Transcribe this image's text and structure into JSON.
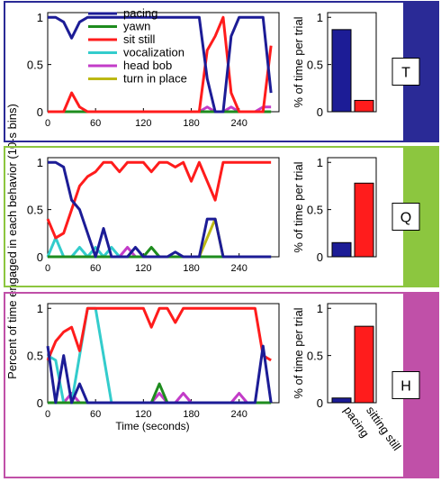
{
  "shared": {
    "ylabel": "Percent of time engaged in each behavior (10-s bins)",
    "xlabel": "Time (seconds)",
    "bar_ylabel": "% of time per trial",
    "bar_categories": [
      "pacing",
      "sitting still"
    ]
  },
  "legend": [
    {
      "name": "pacing",
      "color": "#1c1c96"
    },
    {
      "name": "yawn",
      "color": "#1e8c1e"
    },
    {
      "name": "sit still",
      "color": "#ff1c1c"
    },
    {
      "name": "vocalization",
      "color": "#33cccc"
    },
    {
      "name": "head bob",
      "color": "#c33cc8"
    },
    {
      "name": "turn in place",
      "color": "#bcb814"
    }
  ],
  "chart_data": [
    {
      "type": "line",
      "panel_letter": "T",
      "panel_color": "#2a2a96",
      "xticks": [
        0,
        60,
        120,
        180,
        240
      ],
      "yticks": [
        0,
        0.5,
        1
      ],
      "xlim": [
        0,
        290
      ],
      "ylim": [
        0,
        1.05
      ],
      "x": [
        0,
        10,
        20,
        30,
        40,
        50,
        60,
        70,
        80,
        90,
        100,
        110,
        120,
        130,
        140,
        150,
        160,
        170,
        180,
        190,
        200,
        210,
        220,
        230,
        240,
        250,
        260,
        270,
        280
      ],
      "series": [
        {
          "name": "pacing",
          "values": [
            1,
            1,
            0.95,
            0.78,
            0.95,
            1,
            1,
            1,
            1,
            1,
            1,
            1,
            1,
            1,
            1,
            1,
            1,
            1,
            1,
            1,
            0.35,
            0,
            0,
            0.8,
            1,
            1,
            1,
            1,
            0.2
          ]
        },
        {
          "name": "yawn",
          "values": [
            0,
            0,
            0,
            0,
            0,
            0,
            0,
            0,
            0,
            0,
            0,
            0,
            0,
            0,
            0,
            0,
            0,
            0,
            0,
            0,
            0,
            0,
            0,
            0,
            0,
            0,
            0,
            0,
            0
          ]
        },
        {
          "name": "sit still",
          "values": [
            0,
            0,
            0,
            0.2,
            0.05,
            0,
            0,
            0,
            0,
            0,
            0,
            0,
            0,
            0,
            0,
            0,
            0,
            0,
            0,
            0,
            0.65,
            0.8,
            1,
            0.2,
            0,
            0,
            0,
            0,
            0.7
          ]
        },
        {
          "name": "vocalization",
          "values": [
            0,
            0,
            0,
            0,
            0,
            0,
            0,
            0,
            0,
            0,
            0,
            0,
            0,
            0,
            0,
            0,
            0,
            0,
            0,
            0,
            0,
            0,
            0,
            0,
            0,
            0,
            0,
            0,
            0
          ]
        },
        {
          "name": "head bob",
          "values": [
            0,
            0,
            0,
            0,
            0,
            0,
            0,
            0,
            0,
            0,
            0,
            0,
            0,
            0,
            0,
            0,
            0,
            0,
            0,
            0,
            0.05,
            0,
            0,
            0.05,
            0,
            0,
            0,
            0.05,
            0.05
          ]
        },
        {
          "name": "turn in place",
          "values": [
            0,
            0,
            0,
            0,
            0,
            0,
            0,
            0,
            0,
            0,
            0,
            0,
            0,
            0,
            0,
            0,
            0,
            0,
            0,
            0,
            0,
            0,
            0,
            0,
            0,
            0,
            0,
            0,
            0
          ]
        }
      ],
      "bars": [
        0.87,
        0.12
      ]
    },
    {
      "type": "line",
      "panel_letter": "Q",
      "panel_color": "#8cc63f",
      "xticks": [
        0,
        60,
        120,
        180,
        240
      ],
      "yticks": [
        0,
        0.5,
        1
      ],
      "xlim": [
        0,
        290
      ],
      "ylim": [
        0,
        1.05
      ],
      "x": [
        0,
        10,
        20,
        30,
        40,
        50,
        60,
        70,
        80,
        90,
        100,
        110,
        120,
        130,
        140,
        150,
        160,
        170,
        180,
        190,
        200,
        210,
        220,
        230,
        240,
        250,
        260,
        270,
        280
      ],
      "series": [
        {
          "name": "pacing",
          "values": [
            1,
            1,
            0.95,
            0.6,
            0.5,
            0.25,
            0,
            0.3,
            0,
            0,
            0,
            0.1,
            0,
            0,
            0,
            0,
            0.05,
            0,
            0,
            0,
            0.4,
            0.4,
            0,
            0,
            0,
            0,
            0,
            0,
            0
          ]
        },
        {
          "name": "yawn",
          "values": [
            0,
            0,
            0,
            0,
            0,
            0,
            0,
            0,
            0,
            0,
            0,
            0,
            0,
            0.1,
            0,
            0,
            0,
            0,
            0,
            0,
            0,
            0,
            0,
            0,
            0,
            0,
            0,
            0,
            0
          ]
        },
        {
          "name": "sit still",
          "values": [
            0.4,
            0.2,
            0.25,
            0.5,
            0.75,
            0.85,
            0.9,
            1,
            1,
            0.9,
            1,
            1,
            1,
            0.9,
            1,
            1,
            0.95,
            1,
            0.8,
            1,
            0.8,
            0.6,
            1,
            1,
            1,
            1,
            1,
            1,
            1
          ]
        },
        {
          "name": "vocalization",
          "values": [
            0,
            0.2,
            0,
            0,
            0.1,
            0,
            0.1,
            0,
            0.1,
            0,
            0,
            0,
            0,
            0,
            0,
            0,
            0,
            0,
            0,
            0,
            0,
            0,
            0,
            0,
            0,
            0,
            0,
            0,
            0
          ]
        },
        {
          "name": "head bob",
          "values": [
            0,
            0,
            0,
            0,
            0,
            0,
            0,
            0,
            0,
            0,
            0.1,
            0,
            0,
            0,
            0,
            0,
            0,
            0,
            0,
            0,
            0,
            0,
            0,
            0,
            0,
            0,
            0,
            0,
            0
          ]
        },
        {
          "name": "turn in place",
          "values": [
            0,
            0,
            0,
            0,
            0,
            0,
            0,
            0,
            0,
            0,
            0,
            0,
            0,
            0,
            0,
            0,
            0,
            0,
            0,
            0,
            0.2,
            0.4,
            0,
            0,
            0,
            0,
            0,
            0,
            0
          ]
        }
      ],
      "bars": [
        0.15,
        0.78
      ]
    },
    {
      "type": "line",
      "panel_letter": "H",
      "panel_color": "#c050a8",
      "xticks": [
        0,
        60,
        120,
        180,
        240
      ],
      "yticks": [
        0,
        0.5,
        1
      ],
      "xlim": [
        0,
        290
      ],
      "ylim": [
        0,
        1.05
      ],
      "x": [
        0,
        10,
        20,
        30,
        40,
        50,
        60,
        70,
        80,
        90,
        100,
        110,
        120,
        130,
        140,
        150,
        160,
        170,
        180,
        190,
        200,
        210,
        220,
        230,
        240,
        250,
        260,
        270,
        280
      ],
      "series": [
        {
          "name": "pacing",
          "values": [
            0.6,
            0,
            0.5,
            0,
            0.2,
            0,
            0,
            0,
            0,
            0,
            0,
            0,
            0,
            0,
            0,
            0,
            0,
            0,
            0,
            0,
            0,
            0,
            0,
            0,
            0,
            0,
            0,
            0.6,
            0
          ]
        },
        {
          "name": "yawn",
          "values": [
            0,
            0,
            0,
            0,
            0,
            0,
            0,
            0,
            0,
            0,
            0,
            0,
            0,
            0,
            0.2,
            0,
            0,
            0,
            0,
            0,
            0,
            0,
            0,
            0,
            0,
            0,
            0,
            0,
            0
          ]
        },
        {
          "name": "sit still",
          "values": [
            0.45,
            0.65,
            0.75,
            0.8,
            0.55,
            1,
            1,
            1,
            1,
            1,
            1,
            1,
            1,
            0.8,
            1,
            1,
            0.85,
            1,
            1,
            1,
            1,
            1,
            1,
            1,
            1,
            1,
            1,
            0.5,
            0.45
          ]
        },
        {
          "name": "vocalization",
          "values": [
            0.5,
            0.45,
            0,
            0,
            0.5,
            1,
            1,
            0.5,
            0,
            0,
            0,
            0,
            0,
            0,
            0,
            0,
            0,
            0,
            0,
            0,
            0,
            0,
            0,
            0,
            0,
            0,
            0,
            0,
            0
          ]
        },
        {
          "name": "head bob",
          "values": [
            0,
            0,
            0,
            0.1,
            0,
            0,
            0,
            0,
            0,
            0,
            0,
            0,
            0,
            0,
            0.1,
            0,
            0,
            0.1,
            0,
            0,
            0,
            0,
            0,
            0,
            0.1,
            0,
            0,
            0,
            0
          ]
        },
        {
          "name": "turn in place",
          "values": [
            0,
            0,
            0,
            0,
            0,
            0,
            0,
            0,
            0,
            0,
            0,
            0,
            0,
            0,
            0,
            0,
            0,
            0,
            0,
            0,
            0,
            0,
            0,
            0,
            0,
            0,
            0,
            0,
            0
          ]
        }
      ],
      "bars": [
        0.05,
        0.81
      ]
    }
  ]
}
